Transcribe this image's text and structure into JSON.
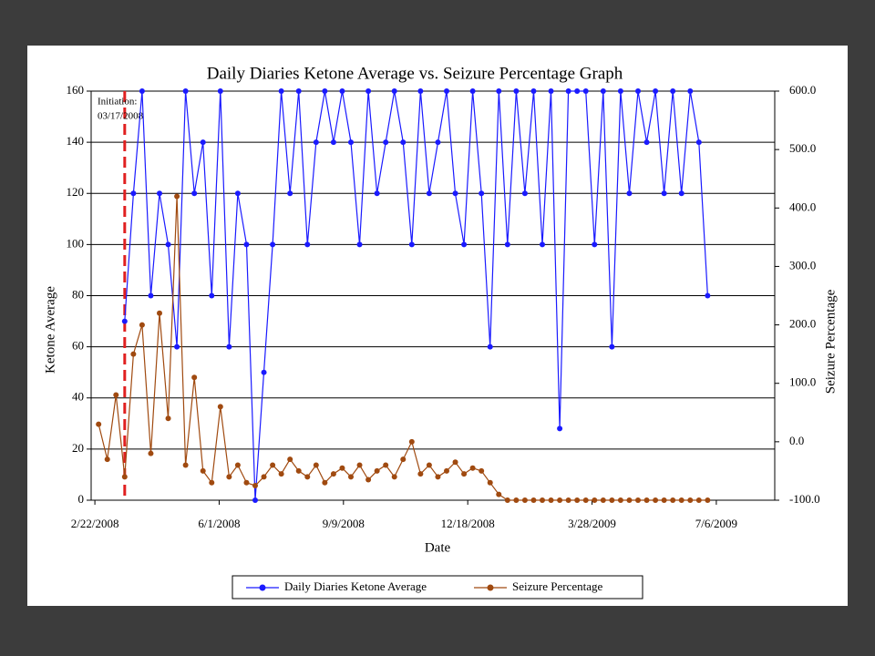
{
  "chart_data": {
    "type": "line",
    "title": "Daily Diaries Ketone Average vs. Seizure Percentage Graph",
    "x_label": "Date",
    "y_label": "Ketone Average",
    "y2_label": "Seizure Percentage",
    "annotation": {
      "lines": [
        "Initiation:",
        "03/17/2008"
      ],
      "x": "2008-03-17",
      "color": "#e02020"
    },
    "xlim": [
      "2008-02-19",
      "2009-08-22"
    ],
    "xticks": [
      {
        "value": "2008-02-22",
        "label": "2/22/2008"
      },
      {
        "value": "2008-06-01",
        "label": "6/1/2008"
      },
      {
        "value": "2008-09-09",
        "label": "9/9/2008"
      },
      {
        "value": "2008-12-18",
        "label": "12/18/2008"
      },
      {
        "value": "2009-03-28",
        "label": "3/28/2009"
      },
      {
        "value": "2009-07-06",
        "label": "7/6/2009"
      }
    ],
    "ylim": [
      0,
      160
    ],
    "yticks": [
      0,
      20,
      40,
      60,
      80,
      100,
      120,
      140,
      160
    ],
    "y2lim": [
      -100,
      600
    ],
    "y2ticks": [
      {
        "value": -100,
        "label": "-100.0"
      },
      {
        "value": 0,
        "label": "0.0"
      },
      {
        "value": 100,
        "label": "100.0"
      },
      {
        "value": 200,
        "label": "200.0"
      },
      {
        "value": 300,
        "label": "300.0"
      },
      {
        "value": 400,
        "label": "400.0"
      },
      {
        "value": 500,
        "label": "500.0"
      },
      {
        "value": 600,
        "label": "600.0"
      }
    ],
    "grid": true,
    "legend": "bottom",
    "x": [
      "2008-02-25",
      "2008-03-03",
      "2008-03-10",
      "2008-03-17",
      "2008-03-24",
      "2008-03-31",
      "2008-04-07",
      "2008-04-14",
      "2008-04-21",
      "2008-04-28",
      "2008-05-05",
      "2008-05-12",
      "2008-05-19",
      "2008-05-26",
      "2008-06-02",
      "2008-06-09",
      "2008-06-16",
      "2008-06-23",
      "2008-06-30",
      "2008-07-07",
      "2008-07-14",
      "2008-07-21",
      "2008-07-28",
      "2008-08-04",
      "2008-08-11",
      "2008-08-18",
      "2008-08-25",
      "2008-09-01",
      "2008-09-08",
      "2008-09-15",
      "2008-09-22",
      "2008-09-29",
      "2008-10-06",
      "2008-10-13",
      "2008-10-20",
      "2008-10-27",
      "2008-11-03",
      "2008-11-10",
      "2008-11-17",
      "2008-11-24",
      "2008-12-01",
      "2008-12-08",
      "2008-12-15",
      "2008-12-22",
      "2008-12-29",
      "2009-01-05",
      "2009-01-12",
      "2009-01-19",
      "2009-01-26",
      "2009-02-02",
      "2009-02-09",
      "2009-02-16",
      "2009-02-23",
      "2009-03-02",
      "2009-03-09",
      "2009-03-16",
      "2009-03-23",
      "2009-03-30",
      "2009-04-06",
      "2009-04-13",
      "2009-04-20",
      "2009-04-27",
      "2009-05-04",
      "2009-05-11",
      "2009-05-18",
      "2009-05-25",
      "2009-06-01",
      "2009-06-08",
      "2009-06-15",
      "2009-06-22",
      "2009-06-29"
    ],
    "series": [
      {
        "name": "Daily Diaries Ketone Average",
        "color": "#1a1aff",
        "values": [
          null,
          null,
          null,
          70,
          120,
          160,
          80,
          120,
          100,
          60,
          160,
          120,
          140,
          80,
          160,
          60,
          120,
          100,
          0,
          50,
          100,
          160,
          120,
          160,
          100,
          140,
          160,
          140,
          160,
          140,
          100,
          160,
          120,
          140,
          160,
          140,
          100,
          160,
          120,
          140,
          160,
          120,
          100,
          160,
          120,
          60,
          160,
          100,
          160,
          120,
          160,
          100,
          160,
          28,
          160,
          160,
          160,
          100,
          160,
          60,
          160,
          120,
          160,
          140,
          160,
          120,
          160,
          120,
          160,
          140,
          80
        ]
      },
      {
        "name": "Seizure Percentage",
        "color": "#a04a10",
        "axis": "y2",
        "values": [
          30,
          -30,
          80,
          -60,
          150,
          200,
          -20,
          220,
          40,
          420,
          -40,
          110,
          -50,
          -70,
          60,
          -60,
          -40,
          -70,
          -75,
          -60,
          -40,
          -55,
          -30,
          -50,
          -60,
          -40,
          -70,
          -55,
          -45,
          -60,
          -40,
          -65,
          -50,
          -40,
          -60,
          -30,
          0,
          -55,
          -40,
          -60,
          -50,
          -35,
          -55,
          -45,
          -50,
          -70,
          -90,
          -100,
          -100,
          -100,
          -100,
          -100,
          -100,
          -100,
          -100,
          -100,
          -100,
          -100,
          -100,
          -100,
          -100,
          -100,
          -100,
          -100,
          -100,
          -100,
          -100,
          -100,
          -100,
          -100,
          -100
        ]
      }
    ]
  }
}
